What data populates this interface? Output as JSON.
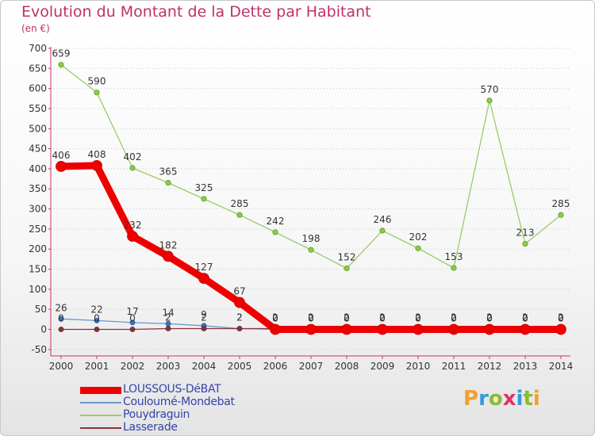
{
  "chart_data": {
    "type": "line",
    "title": "Evolution du Montant de la Dette par Habitant",
    "subtitle": "(en €)",
    "xlabel": "",
    "ylabel": "",
    "ylim": [
      -50,
      700
    ],
    "yticks": [
      "-50",
      "0",
      "50",
      "100",
      "150",
      "200",
      "250",
      "300",
      "350",
      "400",
      "450",
      "500",
      "550",
      "600",
      "650",
      "700"
    ],
    "categories": [
      "2000",
      "2001",
      "2002",
      "2003",
      "2004",
      "2005",
      "2006",
      "2007",
      "2008",
      "2009",
      "2010",
      "2011",
      "2012",
      "2013",
      "2014"
    ],
    "series": [
      {
        "name": "Pouydraguin",
        "color": "#99cc66",
        "values": [
          659,
          590,
          402,
          365,
          325,
          285,
          242,
          198,
          152,
          246,
          202,
          153,
          570,
          213,
          285
        ]
      },
      {
        "name": "Couloumé-Mondebat",
        "color": "#6699cc",
        "values": [
          26,
          22,
          17,
          14,
          9,
          2,
          0,
          0,
          0,
          0,
          0,
          0,
          0,
          0,
          0
        ]
      },
      {
        "name": "Lasserade",
        "color": "#883344",
        "values": [
          0,
          0,
          0,
          2,
          2,
          2,
          2,
          2,
          2,
          2,
          2,
          2,
          2,
          2,
          2
        ]
      },
      {
        "name": "LOUSSOUS-DéBAT",
        "color": "#ee0000",
        "values": [
          406,
          408,
          232,
          182,
          127,
          67,
          0,
          0,
          0,
          0,
          0,
          0,
          0,
          0,
          0
        ]
      }
    ],
    "legend": [
      {
        "name": "LOUSSOUS-DéBAT",
        "color": "#ee0000"
      },
      {
        "name": "Couloumé-Mondebat",
        "color": "#6699cc"
      },
      {
        "name": "Pouydraguin",
        "color": "#99cc66"
      },
      {
        "name": "Lasserade",
        "color": "#883344"
      }
    ]
  },
  "brand": {
    "text": "Proxiti",
    "letters": [
      {
        "ch": "P",
        "color": "#f0a030"
      },
      {
        "ch": "r",
        "color": "#3399dd"
      },
      {
        "ch": "o",
        "color": "#88bb33"
      },
      {
        "ch": "x",
        "color": "#dd3366"
      },
      {
        "ch": "i",
        "color": "#3399dd"
      },
      {
        "ch": "t",
        "color": "#88bb33"
      },
      {
        "ch": "i",
        "color": "#f0a030"
      }
    ]
  }
}
